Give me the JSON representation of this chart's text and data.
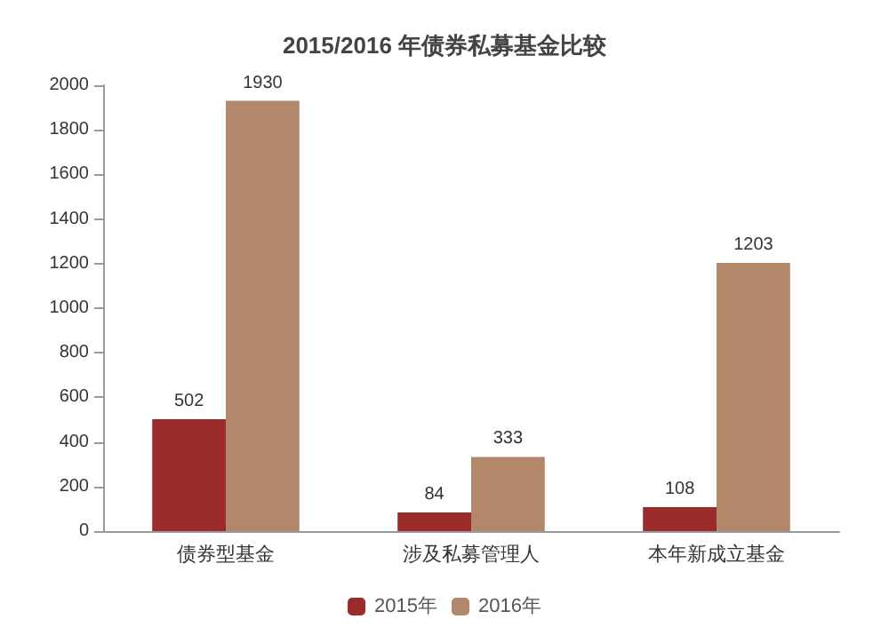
{
  "chart_data": {
    "type": "bar",
    "title": "2015/2016 年债券私募基金比较",
    "categories": [
      "债券型基金",
      "涉及私募管理人",
      "本年新成立基金"
    ],
    "series": [
      {
        "name": "2015年",
        "color": "#9b2c2c",
        "values": [
          502,
          84,
          108
        ]
      },
      {
        "name": "2016年",
        "color": "#b2876a",
        "values": [
          1930,
          333,
          1203
        ]
      }
    ],
    "ylim": [
      0,
      2000
    ],
    "yticks": [
      0,
      200,
      400,
      600,
      800,
      1000,
      1200,
      1400,
      1600,
      1800,
      2000
    ],
    "grid": false,
    "legend": "bottom",
    "data_labels": true
  }
}
